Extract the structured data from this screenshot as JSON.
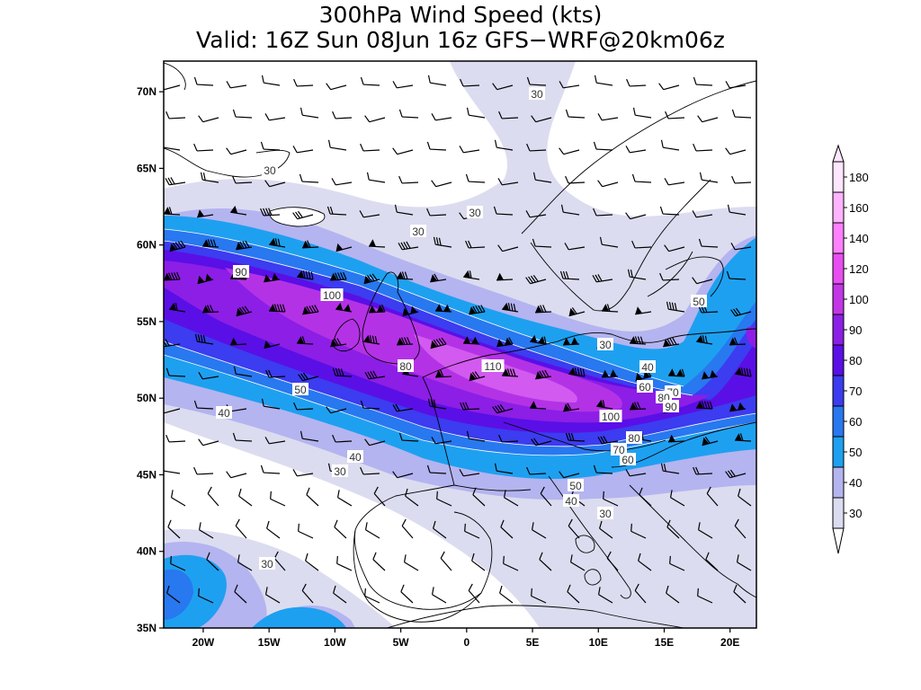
{
  "title": {
    "line1": "300hPa Wind Speed (kts)",
    "line2": "Valid: 16Z Sun 08Jun 16z GFS−WRF@20km06z"
  },
  "map": {
    "lat_labels": [
      "70N",
      "65N",
      "60N",
      "55N",
      "50N",
      "45N",
      "40N",
      "35N"
    ],
    "lon_labels": [
      "20W",
      "15W",
      "10W",
      "5W",
      "0",
      "5E",
      "10E",
      "15E",
      "20E"
    ],
    "extent": {
      "lon": [
        -23,
        22
      ],
      "lat": [
        35,
        72
      ]
    },
    "contour_labels": [
      "30",
      "30",
      "30",
      "30",
      "30",
      "30",
      "30",
      "30",
      "40",
      "40",
      "40",
      "40",
      "50",
      "50",
      "50",
      "60",
      "60",
      "70",
      "70",
      "80",
      "80",
      "80",
      "90",
      "90",
      "100",
      "100",
      "110"
    ]
  },
  "colorbar": {
    "levels": [
      "180",
      "160",
      "140",
      "120",
      "100",
      "90",
      "80",
      "70",
      "60",
      "50",
      "40",
      "30"
    ],
    "colors": [
      "#ffe6ff",
      "#ffb3ff",
      "#ff80ff",
      "#e84df0",
      "#c236e6",
      "#8c1ee6",
      "#5a0fe6",
      "#3c3cf0",
      "#2878f0",
      "#1ea0f0",
      "#b4b4f0",
      "#dcdcf0"
    ]
  },
  "palette": {
    "c30": "#dcdcf0",
    "c40": "#b4b4f0",
    "c50": "#1ea0f0",
    "c60": "#2878f0",
    "c70": "#3c3cf0",
    "c80": "#5a0fe6",
    "c90": "#8c1ee6",
    "c100": "#b432e6",
    "c110": "#d25af0"
  }
}
